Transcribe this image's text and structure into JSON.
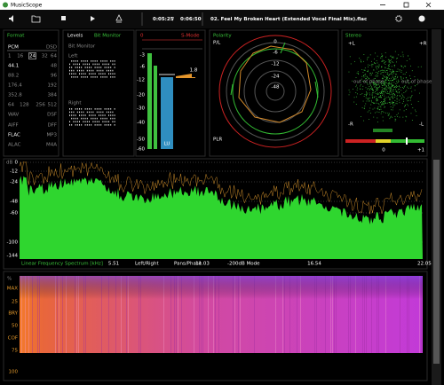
{
  "window": {
    "title": "MusicScope"
  },
  "toolbar": {
    "position": "0:05:25",
    "separator": "/",
    "duration": "0:06:50",
    "track": "02. Feel My Broken Heart (Extended Vocal Final Mix).flac"
  },
  "format": {
    "title": "Format",
    "rows": [
      [
        "PCM",
        "DSD"
      ],
      [
        "1",
        "16",
        "24",
        "32",
        "64"
      ],
      [
        "44.1",
        "48"
      ],
      [
        "88.2",
        "96"
      ],
      [
        "176.4",
        "192"
      ],
      [
        "352.8",
        "384"
      ],
      [
        "64",
        "128",
        "256",
        "512"
      ],
      [
        "WAV",
        "DSF"
      ],
      [
        "AIFF",
        "DFF"
      ],
      [
        "FLAC",
        "MP3"
      ],
      [
        "ALAC",
        "M4A"
      ]
    ]
  },
  "levels": {
    "title": "Levels",
    "bit_monitor_tab": "Bit Monitor",
    "bit_monitor_label": "Bit Monitor",
    "left": "Left",
    "right": "Right",
    "mode": "S-Mode",
    "top": "0",
    "scale": [
      "-3",
      "-6",
      "-12",
      "-20",
      "-30",
      "-40",
      "-50",
      "-60"
    ],
    "lu": "LU",
    "value": "1.8"
  },
  "polarity": {
    "title": "Polarity",
    "top": "P/L",
    "bottom": "PLR",
    "rings": [
      "0",
      "-6",
      "-12",
      "-24",
      "-48"
    ]
  },
  "stereo": {
    "title": "Stereo",
    "plus_l": "+L",
    "plus_r": "+R",
    "minus_r": "-R",
    "minus_l": "-L",
    "out_left": "out of phase",
    "out_right": "out of phase",
    "zero": "0",
    "plus_one": "+1"
  },
  "spectrum": {
    "unit": "dB",
    "ticks": [
      "0",
      "-12",
      "-24",
      "-48",
      "-60",
      "-100",
      "-144"
    ],
    "footer": [
      "Linear Frequency Spectrum [kHz]",
      "5.51",
      "Left/Right",
      "Pans/Phase",
      "11.03",
      "-200dB Mode",
      "16.54",
      "22.05"
    ]
  },
  "spectrogram": {
    "labels": [
      "%",
      "MAX",
      "25",
      "BRY",
      "50",
      "COF",
      "75",
      "100"
    ]
  }
}
